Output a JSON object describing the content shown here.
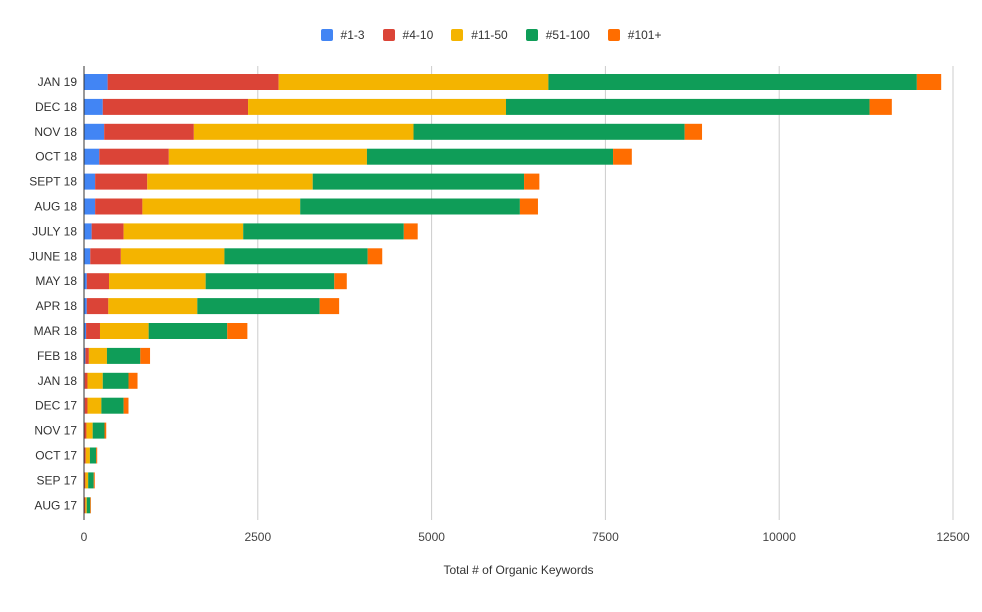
{
  "chart_data": {
    "type": "bar",
    "orientation": "horizontal",
    "stacked": true,
    "title": "",
    "xlabel": "Total # of Organic Keywords",
    "ylabel": "",
    "xlim": [
      0,
      12500
    ],
    "xticks": [
      0,
      2500,
      5000,
      7500,
      10000,
      12500
    ],
    "xtick_labels": [
      "0",
      "2500",
      "5000",
      "7500",
      "10000",
      "12500"
    ],
    "grid": true,
    "legend_position": "top-center",
    "categories": [
      "JAN 19",
      "DEC 18",
      "NOV 18",
      "OCT 18",
      "SEPT 18",
      "AUG 18",
      "JULY 18",
      "JUNE 18",
      "MAY 18",
      "APR 18",
      "MAR 18",
      "FEB 18",
      "JAN 18",
      "DEC 17",
      "NOV 17",
      "OCT 17",
      "SEP 17",
      "AUG 17"
    ],
    "series": [
      {
        "name": "#1-3",
        "color": "#4285F4",
        "values": [
          340,
          270,
          290,
          220,
          160,
          160,
          110,
          90,
          40,
          40,
          30,
          20,
          10,
          10,
          5,
          5,
          5,
          5
        ]
      },
      {
        "name": "#4-10",
        "color": "#DB4437",
        "values": [
          2460,
          2090,
          1290,
          1000,
          750,
          680,
          460,
          440,
          320,
          310,
          200,
          50,
          40,
          40,
          30,
          20,
          15,
          15
        ]
      },
      {
        "name": "#11-50",
        "color": "#F4B400",
        "values": [
          3880,
          3710,
          3160,
          2850,
          2380,
          2270,
          1720,
          1490,
          1390,
          1280,
          700,
          260,
          220,
          200,
          90,
          60,
          40,
          20
        ]
      },
      {
        "name": "#51-100",
        "color": "#0F9D58",
        "values": [
          5300,
          5230,
          3900,
          3540,
          3040,
          3160,
          2310,
          2060,
          1850,
          1760,
          1130,
          480,
          370,
          320,
          170,
          90,
          80,
          50
        ]
      },
      {
        "name": "#101+",
        "color": "#FF6D00",
        "values": [
          350,
          320,
          250,
          270,
          220,
          260,
          200,
          210,
          180,
          280,
          290,
          140,
          130,
          70,
          25,
          15,
          15,
          10
        ]
      }
    ]
  }
}
